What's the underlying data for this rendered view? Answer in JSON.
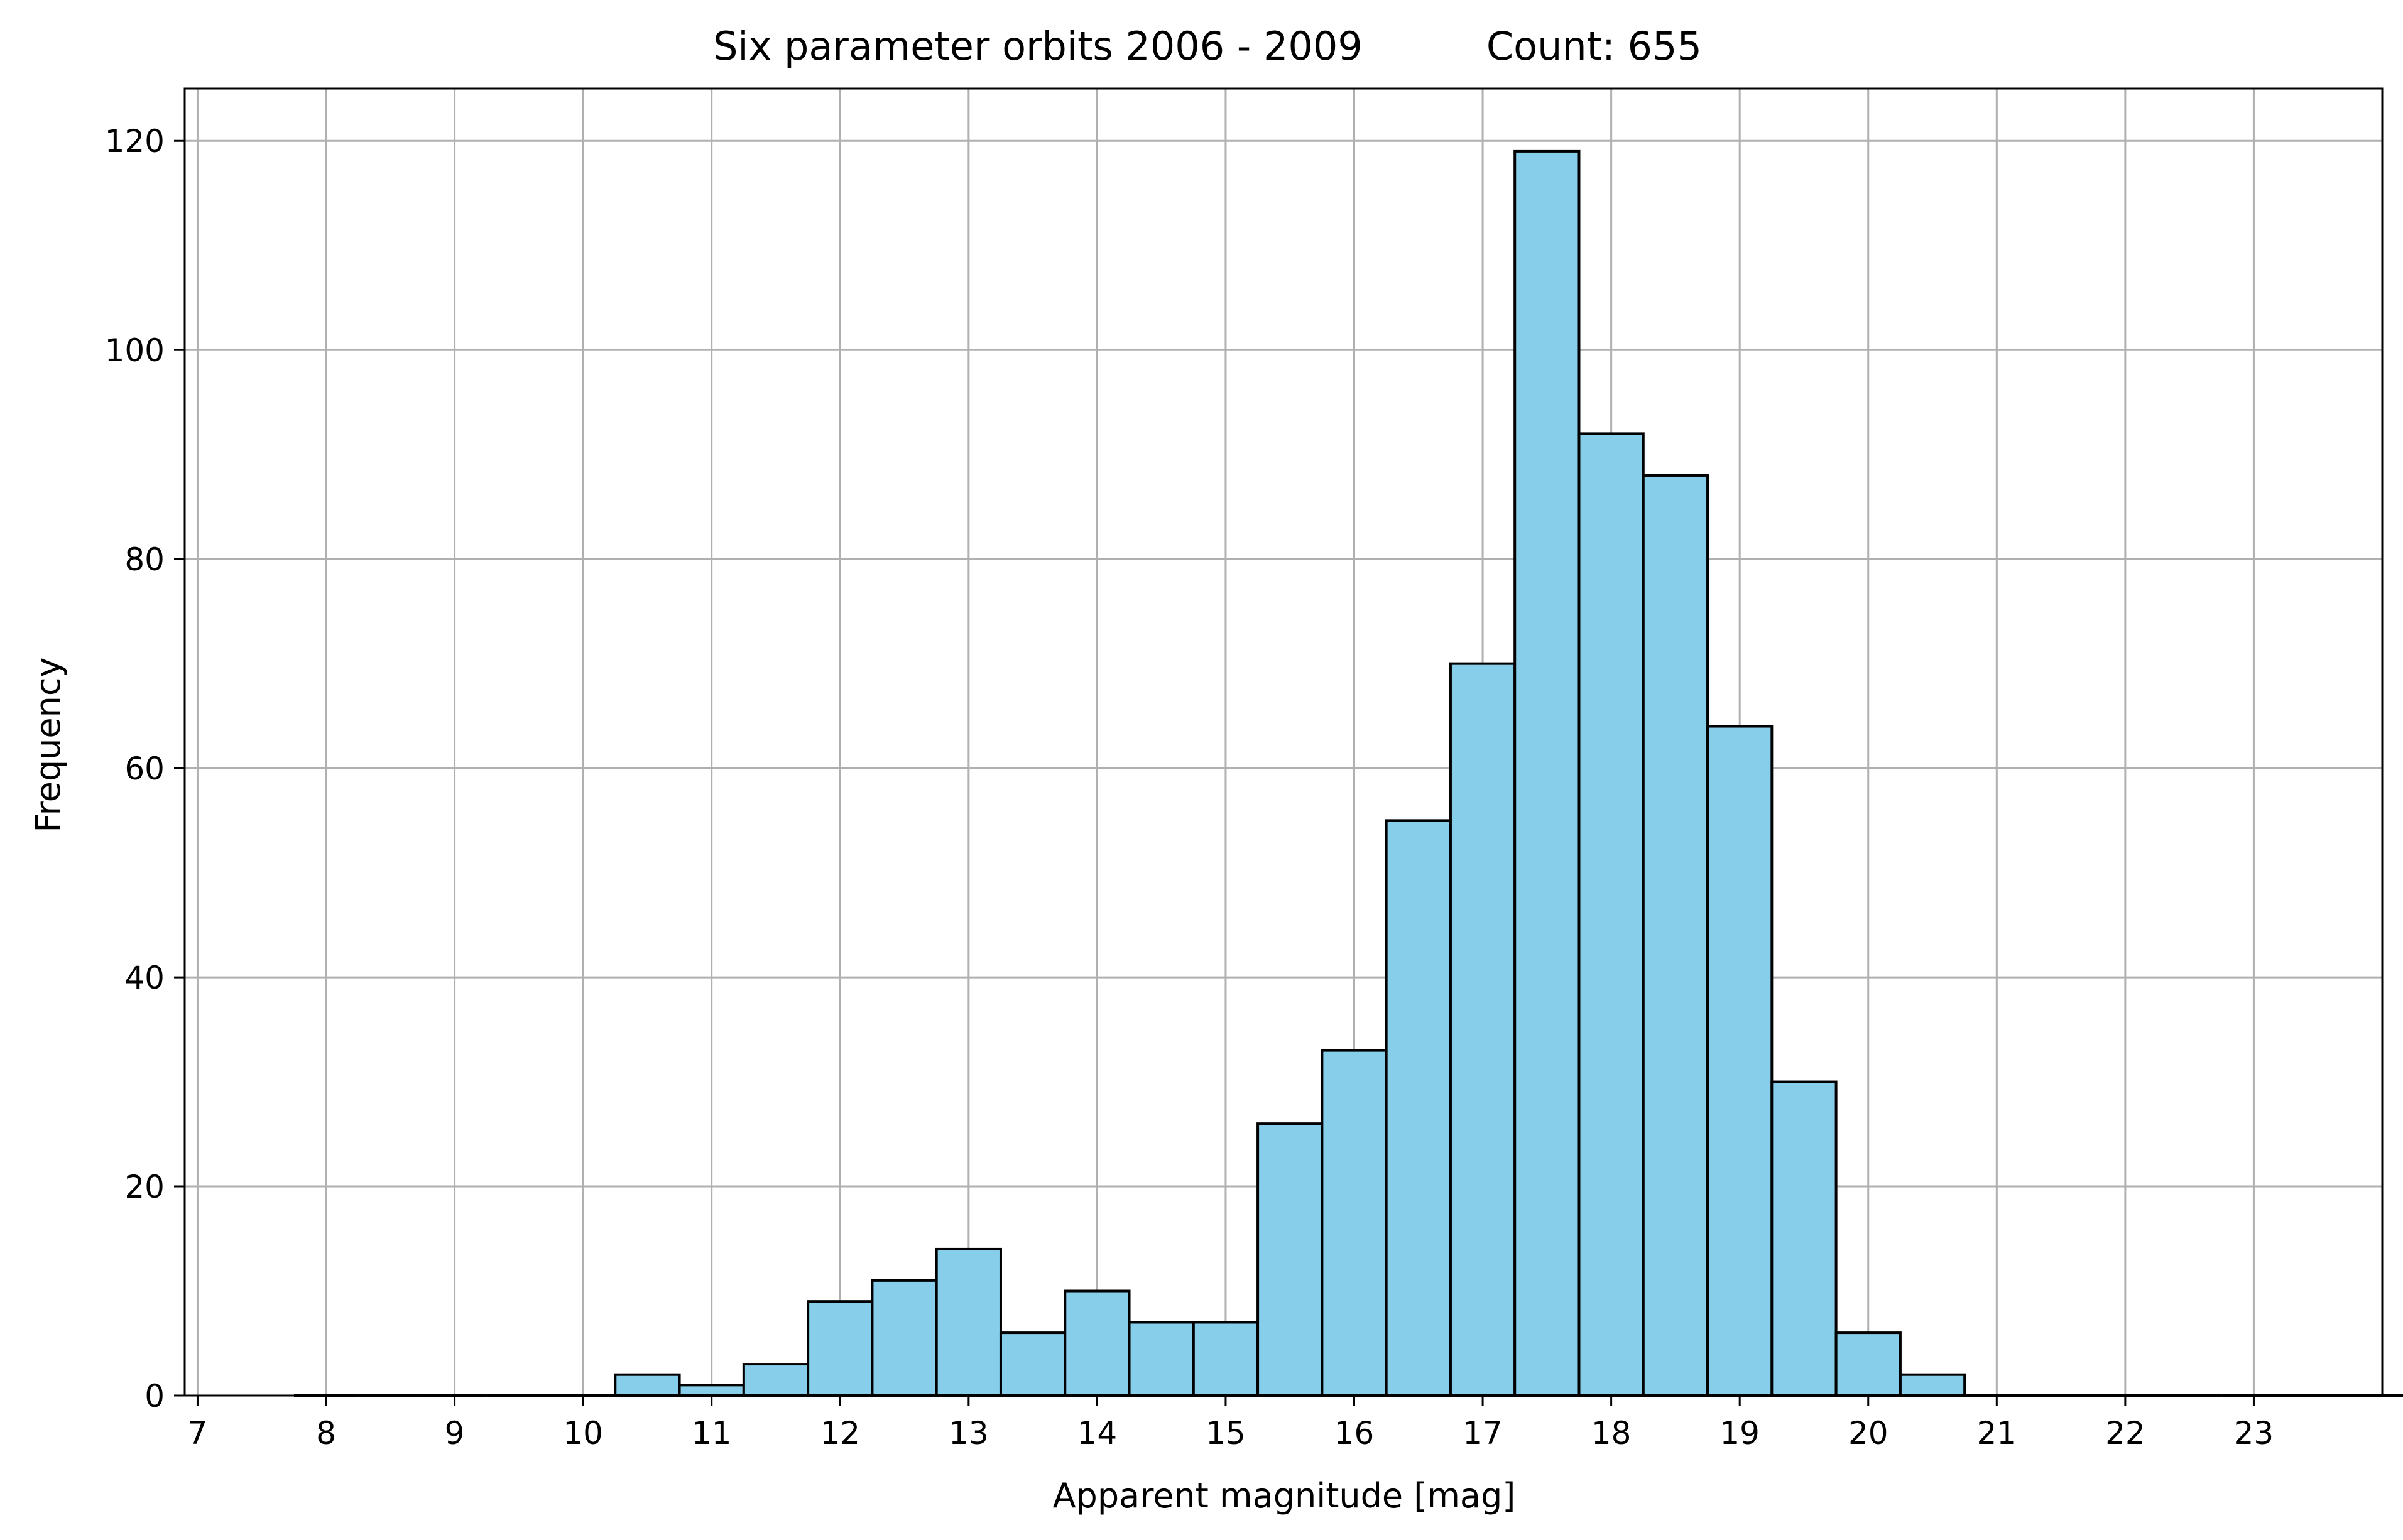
{
  "chart_data": {
    "type": "bar",
    "title": "Six parameter orbits 2006 - 2009          Count: 655",
    "xlabel": "Apparent magnitude [mag]",
    "ylabel": "Frequency",
    "xlim": [
      6.9,
      24.0
    ],
    "ylim": [
      0,
      125
    ],
    "x_ticks": [
      7,
      8,
      9,
      10,
      11,
      12,
      13,
      14,
      15,
      16,
      17,
      18,
      19,
      20,
      21,
      22,
      23
    ],
    "y_ticks": [
      0,
      20,
      40,
      60,
      80,
      100,
      120
    ],
    "grid": true,
    "bar_color": "#87ceeb",
    "edge_color": "#000000",
    "bin_width": 0.5,
    "bins": [
      {
        "x0": 7.75,
        "x1": 8.25,
        "value": 0
      },
      {
        "x0": 8.25,
        "x1": 8.75,
        "value": 0
      },
      {
        "x0": 8.75,
        "x1": 9.25,
        "value": 0
      },
      {
        "x0": 9.25,
        "x1": 9.75,
        "value": 0
      },
      {
        "x0": 9.75,
        "x1": 10.25,
        "value": 0
      },
      {
        "x0": 10.25,
        "x1": 10.75,
        "value": 2
      },
      {
        "x0": 10.75,
        "x1": 11.25,
        "value": 1
      },
      {
        "x0": 11.25,
        "x1": 11.75,
        "value": 3
      },
      {
        "x0": 11.75,
        "x1": 12.25,
        "value": 9
      },
      {
        "x0": 12.25,
        "x1": 12.75,
        "value": 11
      },
      {
        "x0": 12.75,
        "x1": 13.25,
        "value": 14
      },
      {
        "x0": 13.25,
        "x1": 13.75,
        "value": 6
      },
      {
        "x0": 13.75,
        "x1": 14.25,
        "value": 10
      },
      {
        "x0": 14.25,
        "x1": 14.75,
        "value": 7
      },
      {
        "x0": 14.75,
        "x1": 15.25,
        "value": 7
      },
      {
        "x0": 15.25,
        "x1": 15.75,
        "value": 26
      },
      {
        "x0": 15.75,
        "x1": 16.25,
        "value": 33
      },
      {
        "x0": 16.25,
        "x1": 16.75,
        "value": 55
      },
      {
        "x0": 16.75,
        "x1": 17.25,
        "value": 70
      },
      {
        "x0": 17.25,
        "x1": 17.75,
        "value": 119
      },
      {
        "x0": 17.75,
        "x1": 18.25,
        "value": 92
      },
      {
        "x0": 18.25,
        "x1": 18.75,
        "value": 88
      },
      {
        "x0": 18.75,
        "x1": 19.25,
        "value": 64
      },
      {
        "x0": 19.25,
        "x1": 19.75,
        "value": 30
      },
      {
        "x0": 19.75,
        "x1": 20.25,
        "value": 6
      },
      {
        "x0": 20.25,
        "x1": 20.75,
        "value": 2
      },
      {
        "x0": 20.75,
        "x1": 21.25,
        "value": 0
      },
      {
        "x0": 21.25,
        "x1": 21.75,
        "value": 0
      },
      {
        "x0": 21.75,
        "x1": 22.25,
        "value": 0
      },
      {
        "x0": 22.25,
        "x1": 22.75,
        "value": 0
      },
      {
        "x0": 22.75,
        "x1": 23.25,
        "value": 0
      },
      {
        "x0": 23.25,
        "x1": 23.75,
        "value": 0
      },
      {
        "x0": 23.75,
        "x1": 24.25,
        "value": 0
      }
    ]
  }
}
